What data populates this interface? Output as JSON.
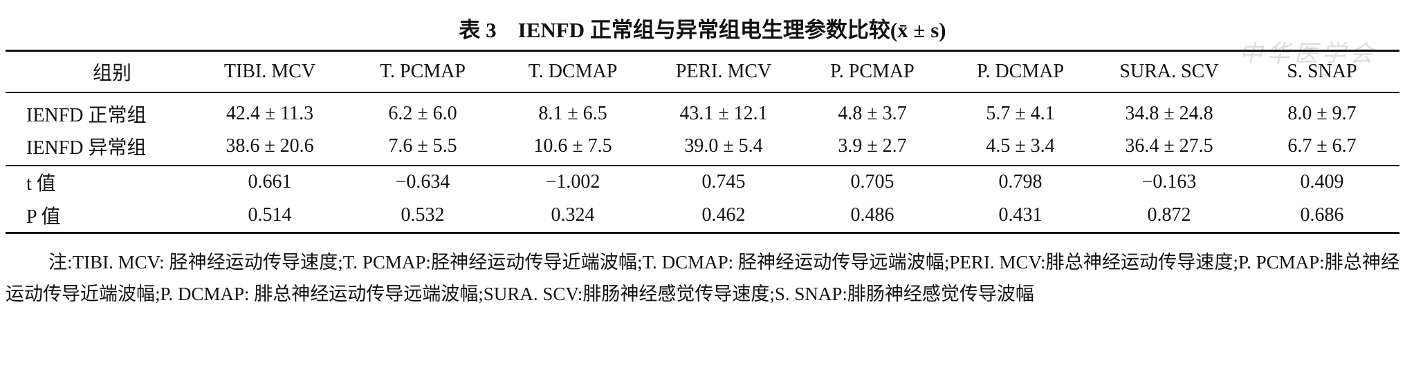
{
  "title": "表 3　IENFD 正常组与异常组电生理参数比较(x̄ ± s)",
  "watermark": "中华医学会",
  "table": {
    "header": [
      "组别",
      "TIBI. MCV",
      "T. PCMAP",
      "T. DCMAP",
      "PERI. MCV",
      "P. PCMAP",
      "P. DCMAP",
      "SURA. SCV",
      "S. SNAP"
    ],
    "rows": [
      [
        "IENFD 正常组",
        "42.4 ± 11.3",
        "6.2 ± 6.0",
        "8.1 ± 6.5",
        "43.1 ± 12.1",
        "4.8 ± 3.7",
        "5.7 ± 4.1",
        "34.8 ± 24.8",
        "8.0 ± 9.7"
      ],
      [
        "IENFD 异常组",
        "38.6 ± 20.6",
        "7.6 ± 5.5",
        "10.6 ± 7.5",
        "39.0 ± 5.4",
        "3.9 ± 2.7",
        "4.5 ± 3.4",
        "36.4 ± 27.5",
        "6.7 ± 6.7"
      ],
      [
        "t 值",
        "0.661",
        "−0.634",
        "−1.002",
        "0.745",
        "0.705",
        "0.798",
        "−0.163",
        "0.409"
      ],
      [
        "P 值",
        "0.514",
        "0.532",
        "0.324",
        "0.462",
        "0.486",
        "0.431",
        "0.872",
        "0.686"
      ]
    ]
  },
  "note": "注:TIBI. MCV: 胫神经运动传导速度;T. PCMAP:胫神经运动传导近端波幅;T. DCMAP: 胫神经运动传导远端波幅;PERI. MCV:腓总神经运动传导速度;P. PCMAP:腓总神经运动传导近端波幅;P. DCMAP: 腓总神经运动传导远端波幅;SURA. SCV:腓肠神经感觉传导速度;S. SNAP:腓肠神经感觉传导波幅"
}
